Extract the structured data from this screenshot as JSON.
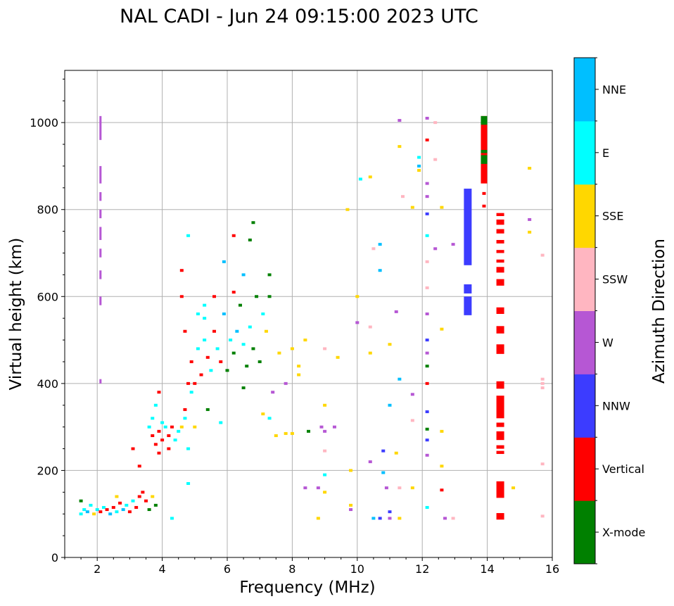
{
  "chart_data": {
    "type": "scatter",
    "title": "NAL CADI - Jun 24 09:15:00 2023 UTC",
    "xlabel": "Frequency (MHz)",
    "ylabel": "Virtual height (km)",
    "xlim": [
      1,
      16
    ],
    "ylim": [
      0,
      1120
    ],
    "xticks": [
      2,
      4,
      6,
      8,
      10,
      12,
      14,
      16
    ],
    "yticks": [
      0,
      200,
      400,
      600,
      800,
      1000
    ],
    "grid": true,
    "colorbar": {
      "label": "Azimuth Direction",
      "categories": [
        "X-mode",
        "Vertical",
        "NNW",
        "W",
        "SSW",
        "SSE",
        "E",
        "NNE"
      ],
      "colors": [
        "#008000",
        "#ff0000",
        "#3c3cff",
        "#b657d4",
        "#ffb6c1",
        "#ffd700",
        "#00ffff",
        "#00bfff"
      ]
    },
    "point_format": "[freq_MHz, height_km, direction_index]",
    "points": [
      [
        1.5,
        100,
        6
      ],
      [
        1.6,
        110,
        6
      ],
      [
        1.7,
        105,
        7
      ],
      [
        1.8,
        120,
        6
      ],
      [
        1.9,
        100,
        5
      ],
      [
        2.0,
        110,
        6
      ],
      [
        2.1,
        105,
        1
      ],
      [
        2.2,
        115,
        6
      ],
      [
        2.3,
        110,
        1
      ],
      [
        2.4,
        100,
        7
      ],
      [
        2.5,
        115,
        1
      ],
      [
        2.6,
        105,
        6
      ],
      [
        2.7,
        125,
        1
      ],
      [
        2.8,
        110,
        7
      ],
      [
        2.9,
        120,
        6
      ],
      [
        3.0,
        105,
        1
      ],
      [
        3.1,
        130,
        6
      ],
      [
        3.2,
        115,
        1
      ],
      [
        3.3,
        140,
        1
      ],
      [
        3.4,
        150,
        1
      ],
      [
        3.5,
        130,
        1
      ],
      [
        3.6,
        110,
        0
      ],
      [
        3.7,
        140,
        5
      ],
      [
        1.5,
        130,
        0
      ],
      [
        2.6,
        140,
        5
      ],
      [
        3.3,
        210,
        1
      ],
      [
        3.1,
        250,
        1
      ],
      [
        4.3,
        90,
        6
      ],
      [
        3.8,
        120,
        0
      ],
      [
        3.6,
        300,
        6
      ],
      [
        3.7,
        280,
        1
      ],
      [
        3.8,
        260,
        1
      ],
      [
        3.9,
        290,
        1
      ],
      [
        4.0,
        270,
        1
      ],
      [
        4.1,
        300,
        6
      ],
      [
        4.2,
        280,
        1
      ],
      [
        4.3,
        300,
        1
      ],
      [
        4.4,
        270,
        6
      ],
      [
        4.5,
        290,
        6
      ],
      [
        3.7,
        320,
        6
      ],
      [
        3.9,
        240,
        1
      ],
      [
        4.0,
        310,
        6
      ],
      [
        3.9,
        380,
        1
      ],
      [
        4.2,
        250,
        1
      ],
      [
        4.6,
        300,
        5
      ],
      [
        4.7,
        320,
        6
      ],
      [
        3.8,
        350,
        6
      ],
      [
        4.7,
        340,
        1
      ],
      [
        4.8,
        400,
        1
      ],
      [
        4.9,
        450,
        1
      ],
      [
        5.0,
        400,
        1
      ],
      [
        5.1,
        480,
        6
      ],
      [
        5.2,
        420,
        1
      ],
      [
        5.3,
        500,
        6
      ],
      [
        5.4,
        460,
        1
      ],
      [
        5.5,
        430,
        6
      ],
      [
        5.6,
        520,
        1
      ],
      [
        5.7,
        480,
        6
      ],
      [
        5.8,
        450,
        1
      ],
      [
        5.9,
        560,
        7
      ],
      [
        6.0,
        430,
        0
      ],
      [
        6.1,
        500,
        6
      ],
      [
        6.2,
        470,
        0
      ],
      [
        6.3,
        520,
        7
      ],
      [
        6.4,
        580,
        0
      ],
      [
        6.5,
        490,
        6
      ],
      [
        6.6,
        440,
        0
      ],
      [
        6.7,
        530,
        6
      ],
      [
        6.8,
        480,
        0
      ],
      [
        6.9,
        600,
        0
      ],
      [
        7.0,
        450,
        0
      ],
      [
        7.1,
        560,
        6
      ],
      [
        7.2,
        520,
        5
      ],
      [
        7.3,
        600,
        0
      ],
      [
        4.6,
        660,
        1
      ],
      [
        4.8,
        740,
        6
      ],
      [
        5.1,
        560,
        6
      ],
      [
        5.3,
        550,
        6
      ],
      [
        5.6,
        600,
        1
      ],
      [
        5.9,
        680,
        7
      ],
      [
        6.2,
        610,
        1
      ],
      [
        6.5,
        650,
        7
      ],
      [
        6.7,
        730,
        0
      ],
      [
        6.8,
        770,
        0
      ],
      [
        7.3,
        650,
        0
      ],
      [
        4.6,
        600,
        1
      ],
      [
        4.9,
        380,
        6
      ],
      [
        5.4,
        340,
        0
      ],
      [
        5.8,
        310,
        6
      ],
      [
        6.5,
        390,
        0
      ],
      [
        4.7,
        520,
        1
      ],
      [
        5.0,
        300,
        5
      ],
      [
        6.2,
        740,
        1
      ],
      [
        5.3,
        580,
        6
      ],
      [
        4.8,
        170,
        6
      ],
      [
        4.8,
        250,
        6
      ],
      [
        7.1,
        330,
        5
      ],
      [
        7.3,
        320,
        6
      ],
      [
        7.5,
        280,
        5
      ],
      [
        7.8,
        285,
        5
      ],
      [
        8.0,
        285,
        5
      ],
      [
        8.2,
        420,
        5
      ],
      [
        8.4,
        500,
        5
      ],
      [
        7.6,
        470,
        5
      ],
      [
        7.8,
        400,
        3
      ],
      [
        8.0,
        480,
        5
      ],
      [
        8.2,
        440,
        5
      ],
      [
        7.4,
        380,
        3
      ],
      [
        8.5,
        290,
        0
      ],
      [
        8.9,
        300,
        3
      ],
      [
        9.0,
        290,
        3
      ],
      [
        9.3,
        300,
        3
      ],
      [
        9.0,
        480,
        4
      ],
      [
        9.0,
        350,
        5
      ],
      [
        9.4,
        460,
        5
      ],
      [
        9.7,
        800,
        5
      ],
      [
        9.8,
        200,
        5
      ],
      [
        9.0,
        190,
        6
      ],
      [
        8.8,
        160,
        3
      ],
      [
        8.4,
        160,
        3
      ],
      [
        9.0,
        150,
        5
      ],
      [
        8.8,
        90,
        5
      ],
      [
        9.0,
        245,
        4
      ],
      [
        9.8,
        120,
        5
      ],
      [
        9.8,
        110,
        3
      ],
      [
        10.0,
        600,
        5
      ],
      [
        10.0,
        540,
        3
      ],
      [
        10.1,
        870,
        6
      ],
      [
        10.4,
        875,
        5
      ],
      [
        10.4,
        530,
        4
      ],
      [
        10.4,
        470,
        5
      ],
      [
        10.4,
        220,
        3
      ],
      [
        10.5,
        90,
        7
      ],
      [
        10.7,
        90,
        2
      ],
      [
        10.7,
        720,
        7
      ],
      [
        10.7,
        660,
        7
      ],
      [
        10.8,
        195,
        7
      ],
      [
        10.8,
        245,
        2
      ],
      [
        10.9,
        160,
        3
      ],
      [
        11.0,
        90,
        3
      ],
      [
        11.0,
        105,
        2
      ],
      [
        11.0,
        490,
        5
      ],
      [
        11.0,
        350,
        7
      ],
      [
        11.3,
        90,
        5
      ],
      [
        11.3,
        160,
        4
      ],
      [
        11.2,
        240,
        5
      ],
      [
        11.2,
        565,
        3
      ],
      [
        11.3,
        1005,
        3
      ],
      [
        11.3,
        945,
        5
      ],
      [
        11.3,
        410,
        7
      ],
      [
        11.7,
        805,
        5
      ],
      [
        11.7,
        375,
        3
      ],
      [
        11.7,
        315,
        4
      ],
      [
        11.7,
        160,
        5
      ],
      [
        11.9,
        920,
        6
      ],
      [
        11.9,
        900,
        7
      ],
      [
        11.9,
        890,
        5
      ],
      [
        11.4,
        830,
        4
      ],
      [
        10.5,
        710,
        4
      ],
      [
        12.15,
        1010,
        3
      ],
      [
        12.15,
        960,
        1
      ],
      [
        12.15,
        860,
        3
      ],
      [
        12.15,
        830,
        3
      ],
      [
        12.15,
        790,
        2
      ],
      [
        12.15,
        740,
        6
      ],
      [
        12.15,
        620,
        4
      ],
      [
        12.15,
        560,
        3
      ],
      [
        12.15,
        500,
        2
      ],
      [
        12.15,
        470,
        3
      ],
      [
        12.15,
        440,
        0
      ],
      [
        12.15,
        400,
        1
      ],
      [
        12.15,
        335,
        2
      ],
      [
        12.15,
        295,
        0
      ],
      [
        12.15,
        270,
        2
      ],
      [
        12.15,
        235,
        3
      ],
      [
        12.15,
        115,
        6
      ],
      [
        12.15,
        680,
        4
      ],
      [
        12.4,
        1000,
        4
      ],
      [
        12.4,
        915,
        4
      ],
      [
        12.4,
        710,
        3
      ],
      [
        12.6,
        805,
        5
      ],
      [
        12.6,
        525,
        5
      ],
      [
        12.6,
        290,
        5
      ],
      [
        12.6,
        210,
        5
      ],
      [
        12.6,
        155,
        1
      ],
      [
        12.7,
        90,
        3
      ],
      [
        12.95,
        720,
        3
      ],
      [
        12.95,
        90,
        4
      ],
      [
        14.8,
        160,
        5
      ],
      [
        15.7,
        410,
        4
      ],
      [
        15.7,
        400,
        4
      ],
      [
        15.7,
        390,
        4
      ],
      [
        15.7,
        215,
        4
      ],
      [
        15.7,
        95,
        4
      ],
      [
        15.7,
        695,
        4
      ],
      [
        15.3,
        895,
        5
      ],
      [
        15.3,
        777,
        3
      ],
      [
        15.3,
        748,
        5
      ],
      [
        13.9,
        837,
        1
      ],
      [
        13.9,
        808,
        1
      ],
      [
        13.4,
        580,
        1
      ]
    ],
    "span_format": "[freq_MHz, height_low_km, height_high_km, direction_index]",
    "spans": [
      [
        13.4,
        672,
        848,
        2
      ],
      [
        13.4,
        607,
        628,
        2
      ],
      [
        13.4,
        557,
        600,
        2
      ],
      [
        13.9,
        860,
        1015,
        1
      ],
      [
        13.9,
        905,
        925,
        0
      ],
      [
        13.9,
        995,
        1015,
        0
      ],
      [
        13.9,
        930,
        937,
        0
      ],
      [
        14.4,
        785,
        792,
        1
      ],
      [
        14.4,
        765,
        777,
        1
      ],
      [
        14.4,
        745,
        755,
        1
      ],
      [
        14.4,
        722,
        730,
        1
      ],
      [
        14.4,
        700,
        707,
        1
      ],
      [
        14.4,
        678,
        685,
        1
      ],
      [
        14.4,
        655,
        668,
        1
      ],
      [
        14.4,
        625,
        640,
        1
      ],
      [
        14.4,
        560,
        575,
        1
      ],
      [
        14.4,
        515,
        532,
        1
      ],
      [
        14.4,
        468,
        490,
        1
      ],
      [
        14.4,
        388,
        405,
        1
      ],
      [
        14.4,
        320,
        372,
        1
      ],
      [
        14.4,
        300,
        310,
        1
      ],
      [
        14.4,
        270,
        290,
        1
      ],
      [
        14.4,
        250,
        258,
        1
      ],
      [
        14.4,
        238,
        245,
        1
      ],
      [
        14.4,
        137,
        175,
        1
      ],
      [
        14.4,
        87,
        102,
        1
      ],
      [
        2.1,
        400,
        410,
        3
      ],
      [
        2.1,
        580,
        600,
        3
      ],
      [
        2.1,
        640,
        660,
        3
      ],
      [
        2.1,
        690,
        710,
        3
      ],
      [
        2.1,
        730,
        760,
        3
      ],
      [
        2.1,
        780,
        800,
        3
      ],
      [
        2.1,
        820,
        840,
        3
      ],
      [
        2.1,
        860,
        900,
        3
      ],
      [
        2.1,
        960,
        1015,
        3
      ]
    ]
  }
}
